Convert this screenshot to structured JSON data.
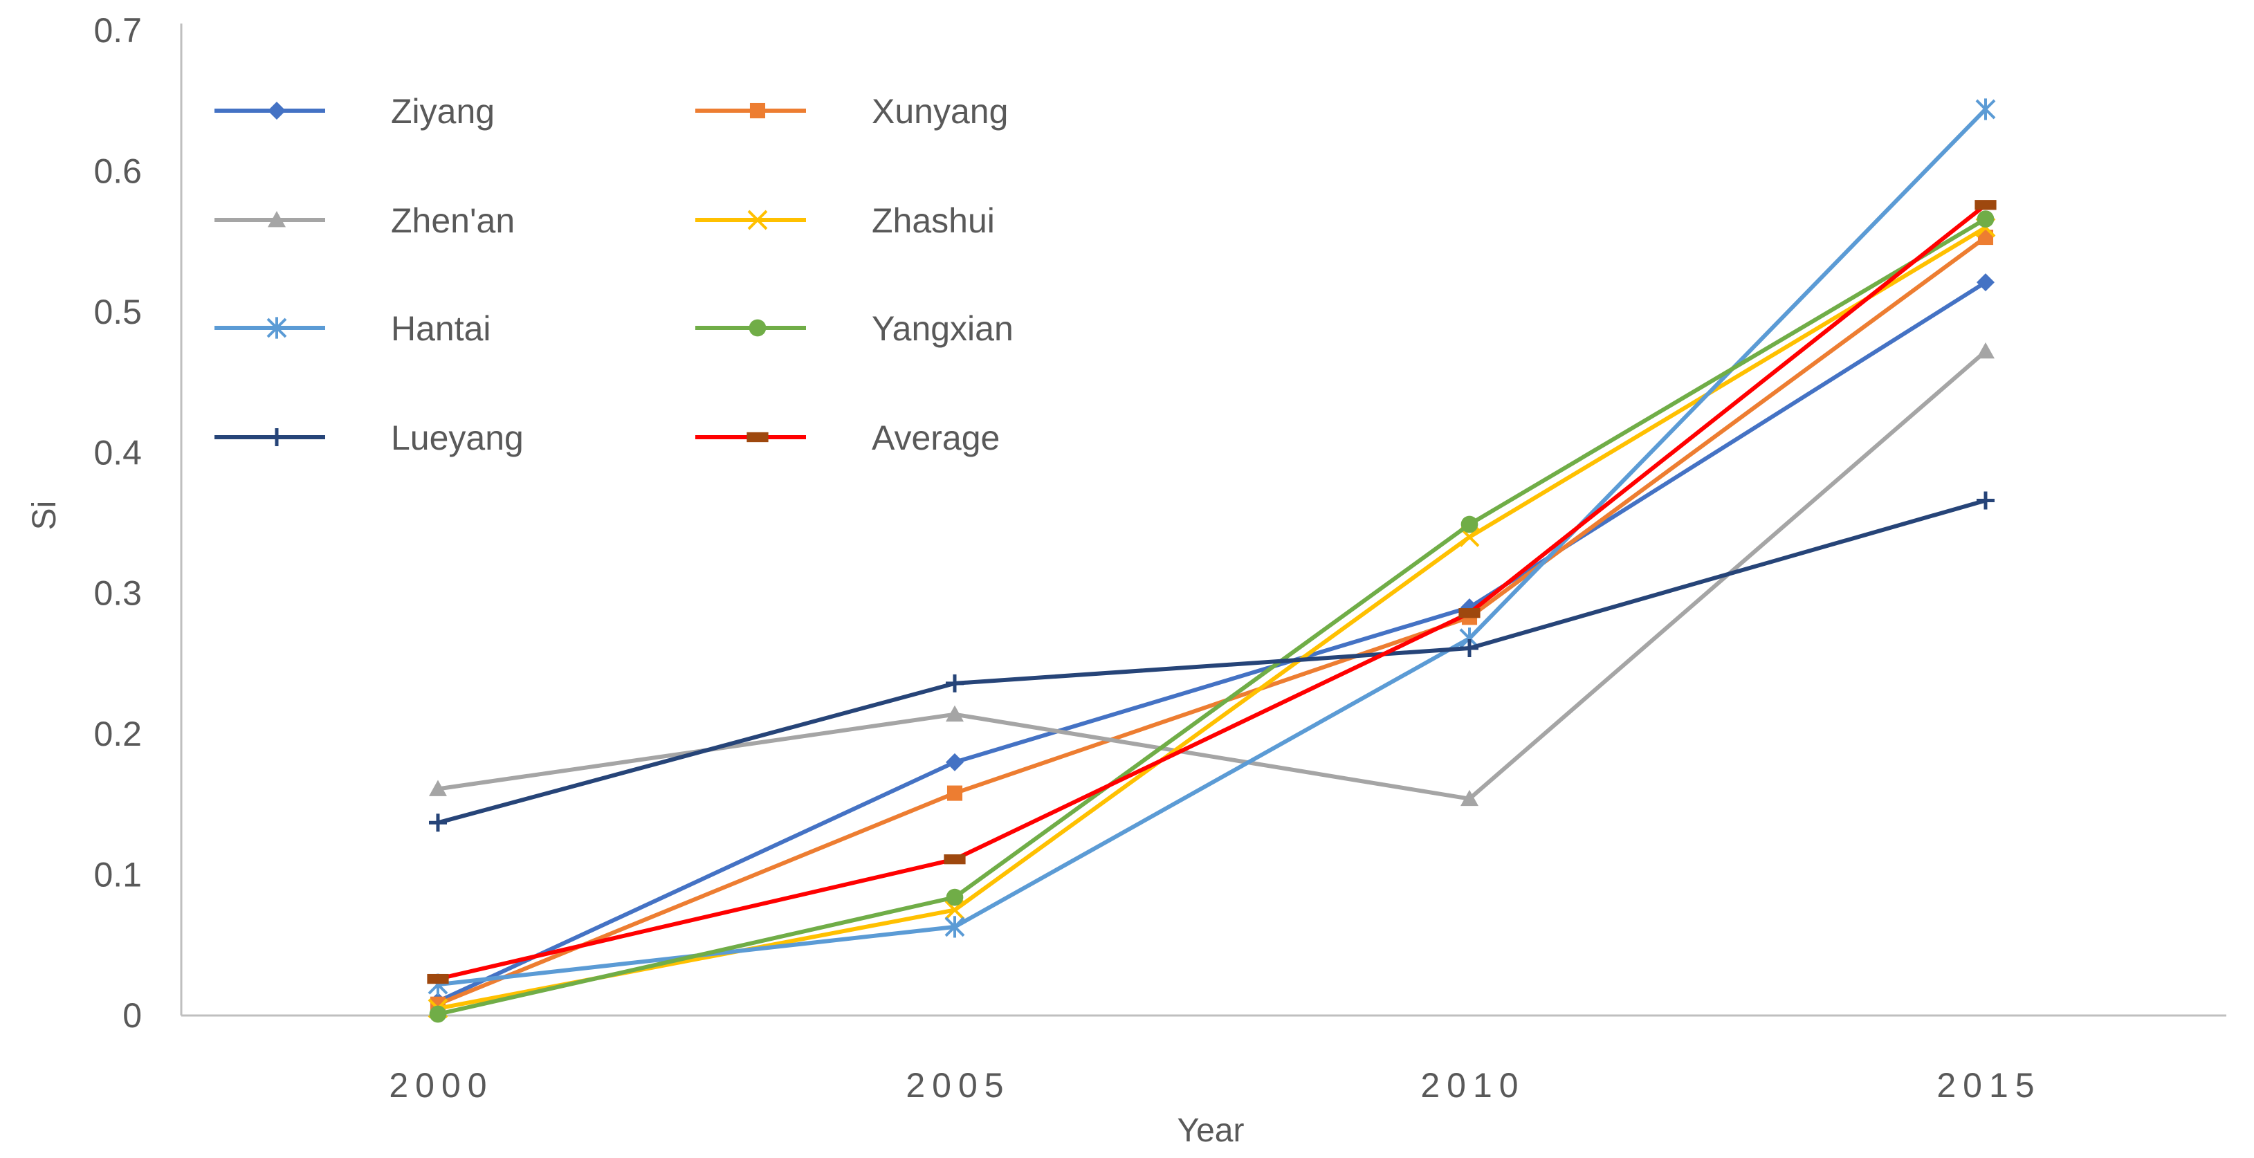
{
  "chart_data": {
    "type": "line",
    "title": "",
    "xlabel": "Year",
    "ylabel": "Si",
    "ylim": [
      0,
      0.7
    ],
    "y_ticks": [
      "0",
      "0.1",
      "0.2",
      "0.3",
      "0.4",
      "0.5",
      "0.6",
      "0.7"
    ],
    "categories": [
      "2000",
      "2005",
      "2010",
      "2015"
    ],
    "grid": false,
    "legend_position": "top-left",
    "series": [
      {
        "name": "Ziyang",
        "color": "#4472C4",
        "marker": "diamond",
        "values": [
          0.01,
          0.18,
          0.29,
          0.521
        ]
      },
      {
        "name": "Xunyang",
        "color": "#ED7D31",
        "marker": "square",
        "values": [
          0.008,
          0.158,
          0.283,
          0.553
        ]
      },
      {
        "name": "Zhen'an",
        "color": "#A5A5A5",
        "marker": "triangle",
        "values": [
          0.161,
          0.214,
          0.154,
          0.472
        ]
      },
      {
        "name": "Zhashui",
        "color": "#FFC000",
        "marker": "x",
        "values": [
          0.005,
          0.075,
          0.34,
          0.56
        ]
      },
      {
        "name": "Hantai",
        "color": "#5B9BD5",
        "marker": "star",
        "values": [
          0.022,
          0.063,
          0.268,
          0.644
        ]
      },
      {
        "name": "Yangxian",
        "color": "#70AD47",
        "marker": "circle",
        "values": [
          0.001,
          0.084,
          0.349,
          0.566
        ]
      },
      {
        "name": "Lueyang",
        "color": "#264478",
        "marker": "plus",
        "values": [
          0.137,
          0.236,
          0.261,
          0.366
        ]
      },
      {
        "name": "Average",
        "color": "#FF0000",
        "marker": "dash",
        "marker_color": "#9E480E",
        "values": [
          0.026,
          0.111,
          0.286,
          0.576
        ]
      }
    ]
  }
}
